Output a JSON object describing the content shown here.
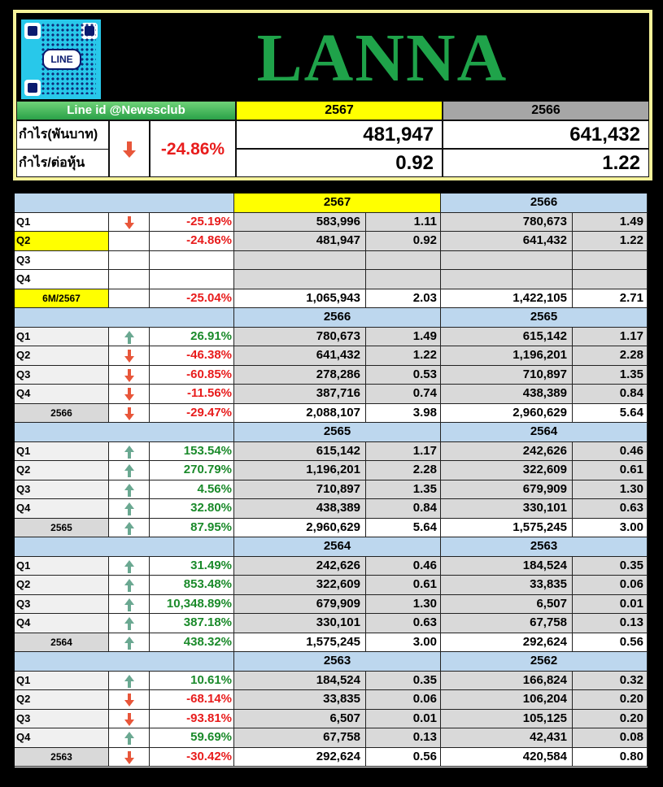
{
  "header": {
    "qr_label": "LINE",
    "brand": "LANNA",
    "line_id": "Line id @Newssclub",
    "year_current": "2567",
    "year_prev": "2566",
    "label_profit": "กำไร(พันบาท)",
    "label_eps": "กำไร/ต่อหุ้น",
    "change": "-24.86%",
    "profit_current": "481,947",
    "profit_prev": "641,432",
    "eps_current": "0.92",
    "eps_prev": "1.22"
  },
  "colors": {
    "up": "#6aa891",
    "down": "#e8563a",
    "neg_text": "#e81c1c",
    "pos_text": "#1a8a2a",
    "highlight": "#ffff00",
    "section_header": "#bdd7ee",
    "brand": "#1fa34a"
  },
  "sections": [
    {
      "y1": "2567",
      "y2": "2566",
      "highlight": true,
      "rows": [
        {
          "label": "Q1",
          "dir": "down",
          "chg": "-25.19%",
          "v1": "583,996",
          "e1": "1.11",
          "v2": "780,673",
          "e2": "1.49"
        },
        {
          "label": "Q2",
          "dir": "",
          "chg": "-24.86%",
          "v1": "481,947",
          "e1": "0.92",
          "v2": "641,432",
          "e2": "1.22",
          "hl": true
        },
        {
          "label": "Q3",
          "dir": "",
          "chg": "",
          "v1": "",
          "e1": "",
          "v2": "",
          "e2": ""
        },
        {
          "label": "Q4",
          "dir": "",
          "chg": "",
          "v1": "",
          "e1": "",
          "v2": "",
          "e2": ""
        }
      ],
      "total": {
        "label": "6M/2567",
        "dir": "",
        "chg": "-25.04%",
        "v1": "1,065,943",
        "e1": "2.03",
        "v2": "1,422,105",
        "e2": "2.71",
        "hl": true
      }
    },
    {
      "y1": "2566",
      "y2": "2565",
      "rows": [
        {
          "label": "Q1",
          "dir": "up",
          "chg": "26.91%",
          "v1": "780,673",
          "e1": "1.49",
          "v2": "615,142",
          "e2": "1.17"
        },
        {
          "label": "Q2",
          "dir": "down",
          "chg": "-46.38%",
          "v1": "641,432",
          "e1": "1.22",
          "v2": "1,196,201",
          "e2": "2.28"
        },
        {
          "label": "Q3",
          "dir": "down",
          "chg": "-60.85%",
          "v1": "278,286",
          "e1": "0.53",
          "v2": "710,897",
          "e2": "1.35"
        },
        {
          "label": "Q4",
          "dir": "down",
          "chg": "-11.56%",
          "v1": "387,716",
          "e1": "0.74",
          "v2": "438,389",
          "e2": "0.84"
        }
      ],
      "total": {
        "label": "2566",
        "dir": "down",
        "chg": "-29.47%",
        "v1": "2,088,107",
        "e1": "3.98",
        "v2": "2,960,629",
        "e2": "5.64"
      }
    },
    {
      "y1": "2565",
      "y2": "2564",
      "rows": [
        {
          "label": "Q1",
          "dir": "up",
          "chg": "153.54%",
          "v1": "615,142",
          "e1": "1.17",
          "v2": "242,626",
          "e2": "0.46"
        },
        {
          "label": "Q2",
          "dir": "up",
          "chg": "270.79%",
          "v1": "1,196,201",
          "e1": "2.28",
          "v2": "322,609",
          "e2": "0.61"
        },
        {
          "label": "Q3",
          "dir": "up",
          "chg": "4.56%",
          "v1": "710,897",
          "e1": "1.35",
          "v2": "679,909",
          "e2": "1.30"
        },
        {
          "label": "Q4",
          "dir": "up",
          "chg": "32.80%",
          "v1": "438,389",
          "e1": "0.84",
          "v2": "330,101",
          "e2": "0.63"
        }
      ],
      "total": {
        "label": "2565",
        "dir": "up",
        "chg": "87.95%",
        "v1": "2,960,629",
        "e1": "5.64",
        "v2": "1,575,245",
        "e2": "3.00"
      }
    },
    {
      "y1": "2564",
      "y2": "2563",
      "rows": [
        {
          "label": "Q1",
          "dir": "up",
          "chg": "31.49%",
          "v1": "242,626",
          "e1": "0.46",
          "v2": "184,524",
          "e2": "0.35"
        },
        {
          "label": "Q2",
          "dir": "up",
          "chg": "853.48%",
          "v1": "322,609",
          "e1": "0.61",
          "v2": "33,835",
          "e2": "0.06"
        },
        {
          "label": "Q3",
          "dir": "up",
          "chg": "10,348.89%",
          "v1": "679,909",
          "e1": "1.30",
          "v2": "6,507",
          "e2": "0.01"
        },
        {
          "label": "Q4",
          "dir": "up",
          "chg": "387.18%",
          "v1": "330,101",
          "e1": "0.63",
          "v2": "67,758",
          "e2": "0.13"
        }
      ],
      "total": {
        "label": "2564",
        "dir": "up",
        "chg": "438.32%",
        "v1": "1,575,245",
        "e1": "3.00",
        "v2": "292,624",
        "e2": "0.56"
      }
    },
    {
      "y1": "2563",
      "y2": "2562",
      "rows": [
        {
          "label": "Q1",
          "dir": "up",
          "chg": "10.61%",
          "v1": "184,524",
          "e1": "0.35",
          "v2": "166,824",
          "e2": "0.32"
        },
        {
          "label": "Q2",
          "dir": "down",
          "chg": "-68.14%",
          "v1": "33,835",
          "e1": "0.06",
          "v2": "106,204",
          "e2": "0.20"
        },
        {
          "label": "Q3",
          "dir": "down",
          "chg": "-93.81%",
          "v1": "6,507",
          "e1": "0.01",
          "v2": "105,125",
          "e2": "0.20"
        },
        {
          "label": "Q4",
          "dir": "up",
          "chg": "59.69%",
          "v1": "67,758",
          "e1": "0.13",
          "v2": "42,431",
          "e2": "0.08"
        }
      ],
      "total": {
        "label": "2563",
        "dir": "down",
        "chg": "-30.42%",
        "v1": "292,624",
        "e1": "0.56",
        "v2": "420,584",
        "e2": "0.80"
      }
    }
  ]
}
